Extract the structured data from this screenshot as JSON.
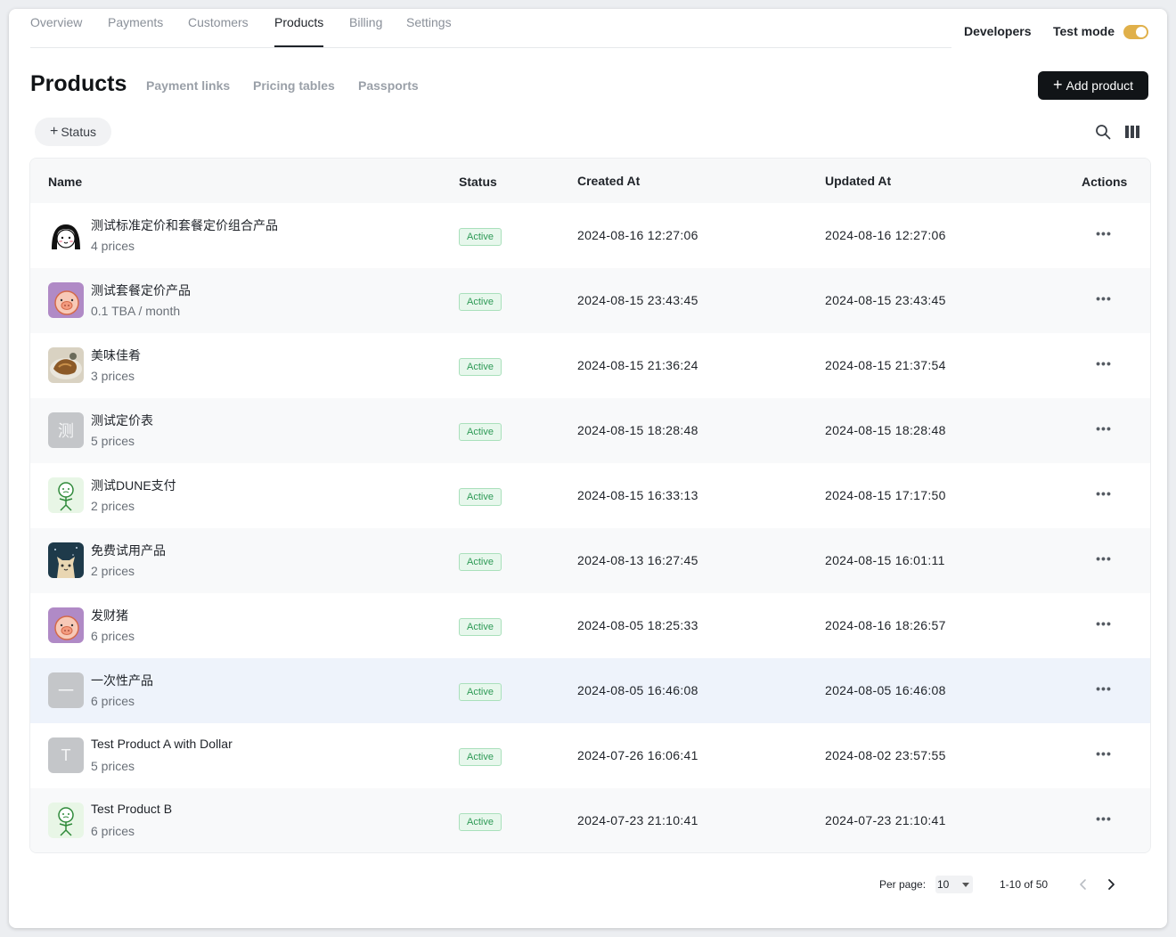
{
  "nav": {
    "tabs": [
      {
        "label": "Overview"
      },
      {
        "label": "Payments"
      },
      {
        "label": "Customers"
      },
      {
        "label": "Products",
        "active": true
      },
      {
        "label": "Billing"
      },
      {
        "label": "Settings"
      }
    ],
    "developers_label": "Developers",
    "test_mode_label": "Test mode",
    "test_mode_on": true
  },
  "page": {
    "title": "Products",
    "subtabs": [
      "Payment links",
      "Pricing tables",
      "Passports"
    ],
    "add_button_label": "Add product"
  },
  "filters": {
    "status_chip_label": "Status"
  },
  "table": {
    "columns": [
      "Name",
      "Status",
      "Created At",
      "Updated At",
      "Actions"
    ],
    "rows": [
      {
        "name": "测试标准定价和套餐定价组合产品",
        "subtitle": "4 prices",
        "avatar": "girl-face-icon",
        "status": "Active",
        "created_at": "2024-08-16 12:27:06",
        "updated_at": "2024-08-16 12:27:06"
      },
      {
        "name": "测试套餐定价产品",
        "subtitle": "0.1 TBA / month",
        "avatar": "pig-icon",
        "status": "Active",
        "created_at": "2024-08-15 23:43:45",
        "updated_at": "2024-08-15 23:43:45"
      },
      {
        "name": "美味佳肴",
        "subtitle": "3 prices",
        "avatar": "food-photo",
        "status": "Active",
        "created_at": "2024-08-15 21:36:24",
        "updated_at": "2024-08-15 21:37:54"
      },
      {
        "name": "测试定价表",
        "subtitle": "5 prices",
        "avatar_letter": "测",
        "status": "Active",
        "created_at": "2024-08-15 18:28:48",
        "updated_at": "2024-08-15 18:28:48"
      },
      {
        "name": "测试DUNE支付",
        "subtitle": "2 prices",
        "avatar": "green-figure-icon",
        "status": "Active",
        "created_at": "2024-08-15 16:33:13",
        "updated_at": "2024-08-15 17:17:50"
      },
      {
        "name": "免费试用产品",
        "subtitle": "2 prices",
        "avatar": "cat-photo",
        "status": "Active",
        "created_at": "2024-08-13 16:27:45",
        "updated_at": "2024-08-15 16:01:11"
      },
      {
        "name": "发财猪",
        "subtitle": "6 prices",
        "avatar": "pig-icon",
        "status": "Active",
        "created_at": "2024-08-05 18:25:33",
        "updated_at": "2024-08-16 18:26:57"
      },
      {
        "name": "一次性产品",
        "subtitle": "6 prices",
        "avatar_letter": "一",
        "status": "Active",
        "created_at": "2024-08-05 16:46:08",
        "updated_at": "2024-08-05 16:46:08",
        "highlighted": true
      },
      {
        "name": "Test Product A with Dollar",
        "subtitle": "5 prices",
        "avatar_letter": "T",
        "status": "Active",
        "created_at": "2024-07-26 16:06:41",
        "updated_at": "2024-08-02 23:57:55"
      },
      {
        "name": "Test Product B",
        "subtitle": "6 prices",
        "avatar": "green-figure-icon",
        "status": "Active",
        "created_at": "2024-07-23 21:10:41",
        "updated_at": "2024-07-23 21:10:41"
      }
    ],
    "actions_glyph": "•••"
  },
  "pagination": {
    "per_page_label": "Per page:",
    "per_page_value": "10",
    "range_label": "1-10 of 50"
  },
  "colors": {
    "toggle_on": "#e0b04a",
    "badge_text": "#2e9a56",
    "badge_bg": "#e7f7ec",
    "primary_button": "#111417"
  }
}
